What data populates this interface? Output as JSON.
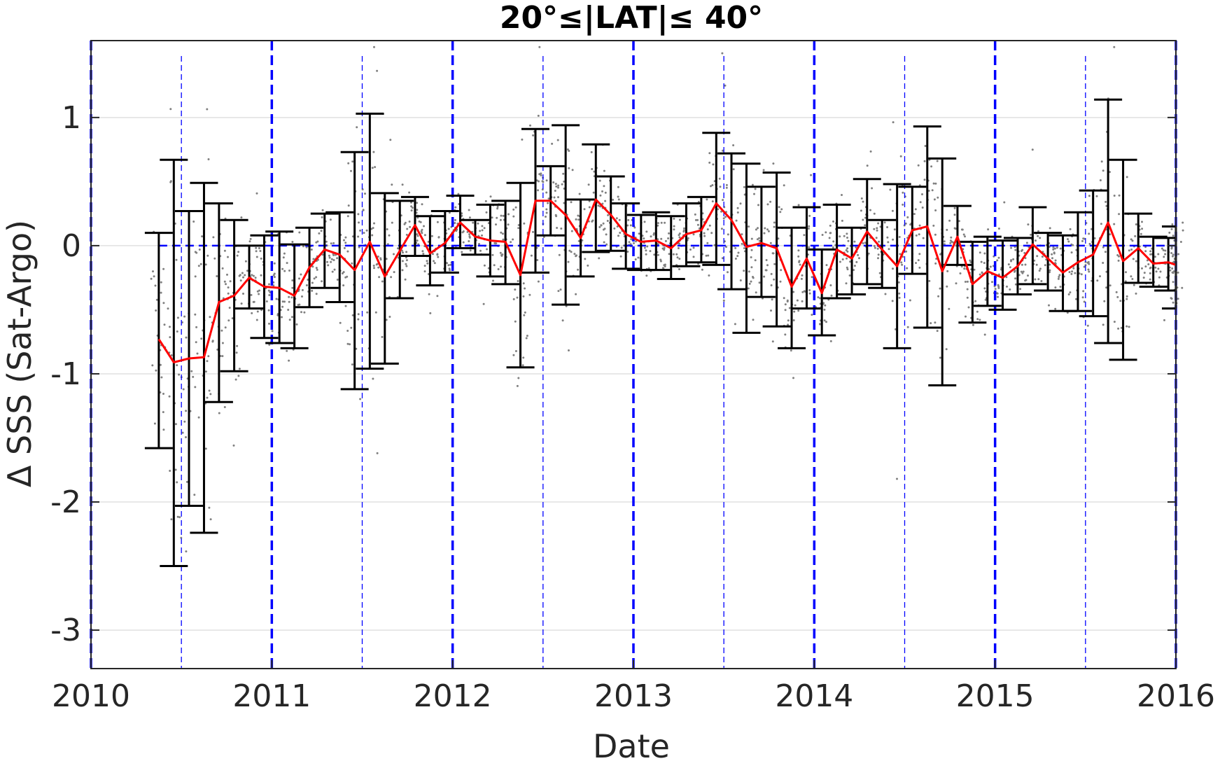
{
  "chart_data": {
    "type": "line",
    "title": "20°≤|LAT|≤ 40°",
    "xlabel": "Date",
    "ylabel": "Δ SSS (Sat-Argo)",
    "xlim": [
      2010.0,
      2016.0
    ],
    "ylim": [
      -3.3,
      1.6
    ],
    "x_ticks": [
      "2010",
      "2011",
      "2012",
      "2013",
      "2014",
      "2015",
      "2016"
    ],
    "y_ticks": [
      "-3",
      "-2",
      "-1",
      "0",
      "1"
    ],
    "grid": "horizontal",
    "colors": {
      "mean_line": "#ff0000",
      "error_bars": "#000000",
      "scatter": "#808080",
      "reference_lines": "#0000ff",
      "grid": "#e0e0e0"
    },
    "series": [
      {
        "kind": "mean-with-error-bars",
        "x": [
          2010.375,
          2010.458,
          2010.542,
          2010.625,
          2010.708,
          2010.792,
          2010.875,
          2010.958,
          2011.042,
          2011.125,
          2011.208,
          2011.292,
          2011.375,
          2011.458,
          2011.542,
          2011.625,
          2011.708,
          2011.792,
          2011.875,
          2011.958,
          2012.042,
          2012.125,
          2012.208,
          2012.292,
          2012.375,
          2012.458,
          2012.542,
          2012.625,
          2012.708,
          2012.792,
          2012.875,
          2012.958,
          2013.042,
          2013.125,
          2013.208,
          2013.292,
          2013.375,
          2013.458,
          2013.542,
          2013.625,
          2013.708,
          2013.792,
          2013.875,
          2013.958,
          2014.042,
          2014.125,
          2014.208,
          2014.292,
          2014.375,
          2014.458,
          2014.542,
          2014.625,
          2014.708,
          2014.792,
          2014.875,
          2014.958,
          2015.042,
          2015.125,
          2015.208,
          2015.292,
          2015.375,
          2015.458,
          2015.542,
          2015.625,
          2015.708,
          2015.792,
          2015.875,
          2015.958,
          2016.0
        ],
        "mean": [
          -0.73,
          -0.91,
          -0.88,
          -0.87,
          -0.44,
          -0.39,
          -0.25,
          -0.32,
          -0.33,
          -0.39,
          -0.17,
          -0.03,
          -0.07,
          -0.19,
          0.03,
          -0.24,
          -0.04,
          0.16,
          -0.06,
          0.02,
          0.18,
          0.07,
          0.04,
          0.03,
          -0.23,
          0.35,
          0.35,
          0.24,
          0.06,
          0.36,
          0.24,
          0.09,
          0.03,
          0.04,
          -0.02,
          0.09,
          0.12,
          0.33,
          0.2,
          -0.01,
          0.02,
          -0.02,
          -0.32,
          -0.1,
          -0.37,
          -0.03,
          -0.1,
          0.11,
          -0.03,
          -0.16,
          0.12,
          0.15,
          -0.2,
          0.07,
          -0.3,
          -0.2,
          -0.25,
          -0.16,
          0.01,
          -0.1,
          -0.21,
          -0.13,
          -0.07,
          0.18,
          -0.12,
          -0.02,
          -0.14,
          -0.13,
          -0.15
        ],
        "lower": [
          -1.58,
          -2.5,
          -2.03,
          -2.24,
          -1.22,
          -0.98,
          -0.49,
          -0.72,
          -0.76,
          -0.8,
          -0.48,
          -0.33,
          -0.44,
          -1.12,
          -0.96,
          -0.92,
          -0.41,
          -0.08,
          -0.31,
          -0.21,
          -0.02,
          -0.07,
          -0.24,
          -0.3,
          -0.95,
          -0.21,
          0.08,
          -0.46,
          -0.24,
          -0.05,
          -0.04,
          -0.18,
          -0.19,
          -0.19,
          -0.26,
          -0.16,
          -0.13,
          -0.15,
          -0.34,
          -0.68,
          -0.4,
          -0.63,
          -0.8,
          -0.49,
          -0.7,
          -0.41,
          -0.38,
          -0.3,
          -0.33,
          -0.8,
          -0.22,
          -0.64,
          -1.09,
          -0.15,
          -0.6,
          -0.47,
          -0.5,
          -0.38,
          -0.3,
          -0.35,
          -0.51,
          -0.51,
          -0.55,
          -0.76,
          -0.89,
          -0.29,
          -0.32,
          -0.35,
          -0.49
        ],
        "upper": [
          0.1,
          0.67,
          0.27,
          0.49,
          0.33,
          0.2,
          0.0,
          0.08,
          0.11,
          0.01,
          0.14,
          0.25,
          0.26,
          0.73,
          1.03,
          0.41,
          0.35,
          0.38,
          0.23,
          0.27,
          0.39,
          0.2,
          0.32,
          0.35,
          0.49,
          0.91,
          0.62,
          0.94,
          0.36,
          0.79,
          0.54,
          0.33,
          0.24,
          0.26,
          0.23,
          0.33,
          0.38,
          0.88,
          0.72,
          0.64,
          0.46,
          0.57,
          0.14,
          0.3,
          -0.03,
          0.32,
          0.14,
          0.52,
          0.2,
          0.48,
          0.46,
          0.93,
          0.68,
          0.31,
          0.03,
          0.07,
          0.04,
          0.06,
          0.3,
          0.1,
          0.08,
          0.26,
          0.43,
          1.14,
          0.67,
          0.25,
          0.07,
          0.06,
          0.15
        ]
      }
    ],
    "reference_lines": {
      "horizontal_y": 0,
      "vertical_thick_x": [
        2010,
        2011,
        2012,
        2013,
        2014,
        2015,
        2016
      ],
      "vertical_thin_x": [
        2010.5,
        2011.5,
        2012.5,
        2013.5,
        2014.5,
        2015.5
      ]
    },
    "scatter_note_density": "dense grey points clustered around each monthly mean"
  }
}
